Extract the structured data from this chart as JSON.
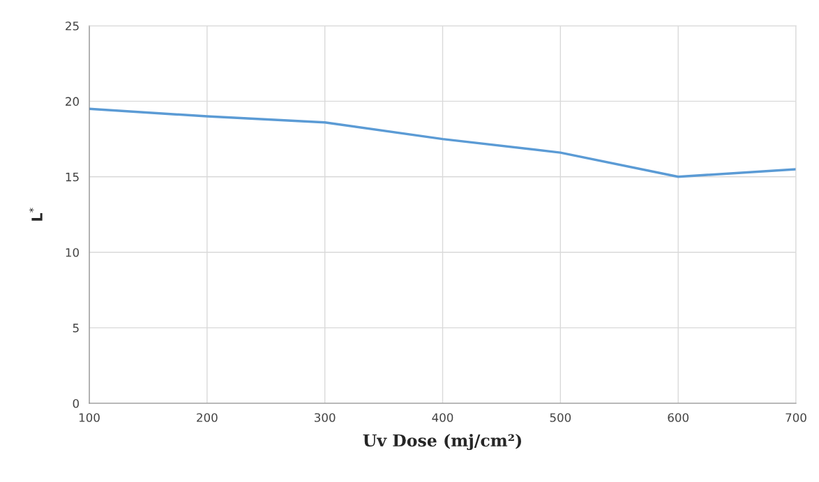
{
  "chart_data": {
    "type": "line",
    "xlabel": "Uv Dose (mj/cm²)",
    "ylabel": "L$^{*}$",
    "x": [
      100,
      200,
      300,
      400,
      500,
      600,
      700
    ],
    "series": [
      {
        "color": "#5b9bd5",
        "values": [
          19.5,
          19.0,
          18.6,
          17.5,
          16.6,
          15.0,
          15.5
        ]
      }
    ],
    "xlim": [
      100,
      700
    ],
    "xticks": [
      100,
      200,
      300,
      400,
      500,
      600,
      700
    ],
    "ylim": [
      0,
      25
    ],
    "yticks": [
      0,
      5,
      10,
      15,
      20,
      25
    ],
    "grid": true,
    "marker": "none",
    "line_style": "solid"
  }
}
